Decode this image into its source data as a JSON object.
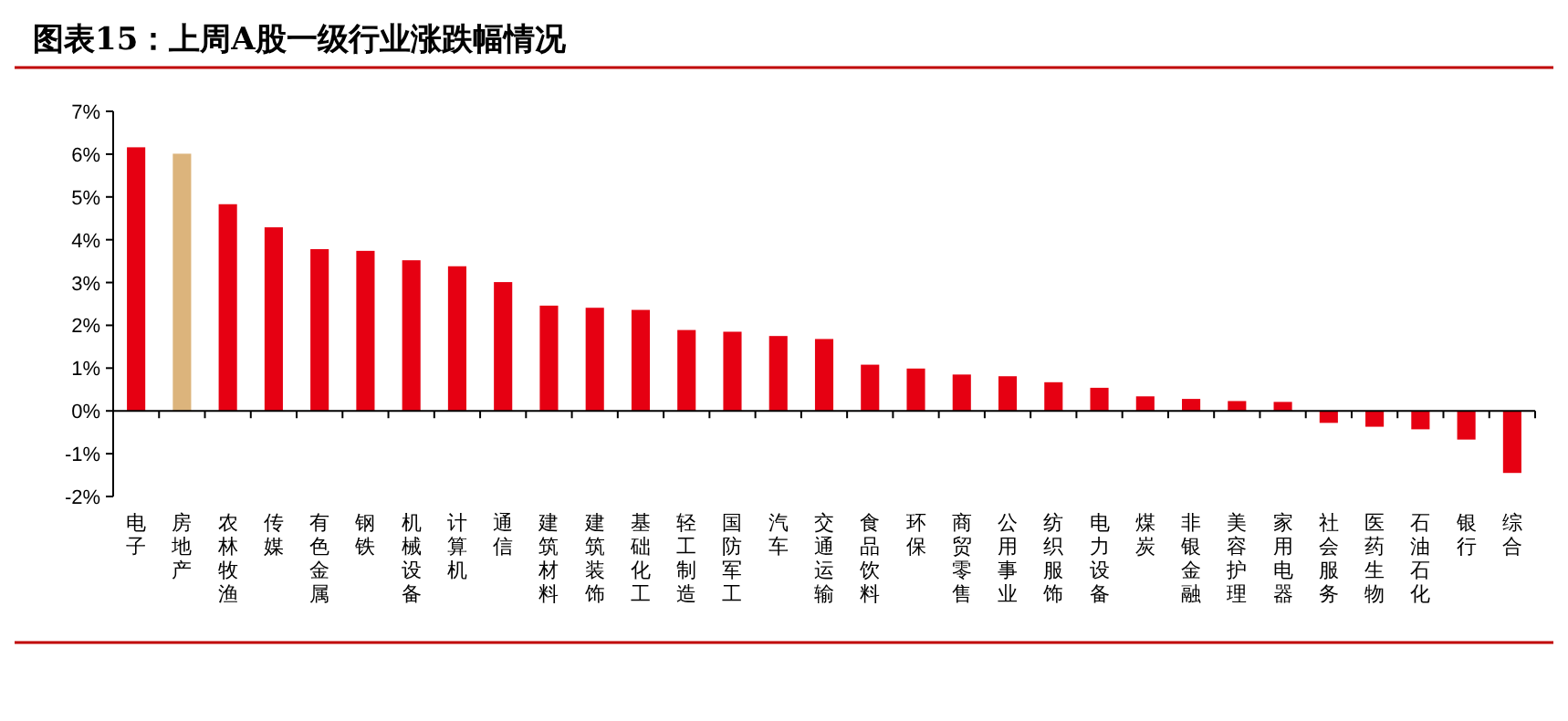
{
  "chart_data": {
    "type": "bar",
    "title": "图表15：上周A股一级行业涨跌幅情况",
    "categories": [
      "电子",
      "房地产",
      "农林牧渔",
      "传媒",
      "有色金属",
      "钢铁",
      "机械设备",
      "计算机",
      "通信",
      "建筑材料",
      "建筑装饰",
      "基础化工",
      "轻工制造",
      "国防军工",
      "汽车",
      "交通运输",
      "食品饮料",
      "环保",
      "商贸零售",
      "公用事业",
      "纺织服饰",
      "电力设备",
      "煤炭",
      "非银金融",
      "美容护理",
      "家用电器",
      "社会服务",
      "医药生物",
      "石油石化",
      "银行",
      "综合"
    ],
    "values": [
      6.16,
      6.01,
      4.83,
      4.29,
      3.78,
      3.74,
      3.52,
      3.38,
      3.01,
      2.46,
      2.41,
      2.36,
      1.89,
      1.85,
      1.75,
      1.68,
      1.08,
      0.99,
      0.85,
      0.81,
      0.67,
      0.54,
      0.34,
      0.28,
      0.23,
      0.21,
      -0.28,
      -0.37,
      -0.43,
      -0.67,
      -1.45
    ],
    "colors": [
      "#e60012",
      "#dcb47c",
      "#e60012",
      "#e60012",
      "#e60012",
      "#e60012",
      "#e60012",
      "#e60012",
      "#e60012",
      "#e60012",
      "#e60012",
      "#e60012",
      "#e60012",
      "#e60012",
      "#e60012",
      "#e60012",
      "#e60012",
      "#e60012",
      "#e60012",
      "#e60012",
      "#e60012",
      "#e60012",
      "#e60012",
      "#e60012",
      "#e60012",
      "#e60012",
      "#e60012",
      "#e60012",
      "#e60012",
      "#e60012",
      "#e60012"
    ],
    "ylim": [
      -2,
      7
    ],
    "yticks": [
      {
        "value": -2,
        "label": "-2%"
      },
      {
        "value": -1,
        "label": "-1%"
      },
      {
        "value": 0,
        "label": "0%"
      },
      {
        "value": 1,
        "label": "1%"
      },
      {
        "value": 2,
        "label": "2%"
      },
      {
        "value": 3,
        "label": "3%"
      },
      {
        "value": 4,
        "label": "4%"
      },
      {
        "value": 5,
        "label": "5%"
      },
      {
        "value": 6,
        "label": "6%"
      },
      {
        "value": 7,
        "label": "7%"
      }
    ],
    "ylabel": null
  }
}
